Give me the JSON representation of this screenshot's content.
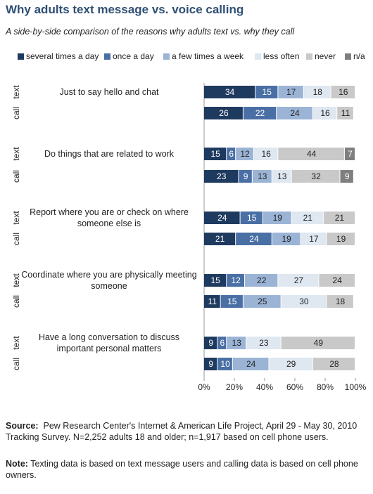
{
  "chart_data": {
    "type": "stacked-bar-horizontal",
    "title": "Why adults text message vs. voice calling",
    "subtitle": "A side-by-side comparison of the reasons why adults text vs. why they call",
    "categories": [
      "Just to say hello and chat",
      null,
      "Do things that are related to work",
      null,
      "Report where you are or check on where someone else is",
      null,
      "Coordinate where you are physically meeting someone",
      null,
      "Have a long conversation to discuss important personal matters",
      null
    ],
    "row_labels": [
      "text",
      "call",
      "text",
      "call",
      "text",
      "call",
      "text",
      "call",
      "text",
      "call"
    ],
    "series": [
      {
        "name": "several times a day",
        "color": "#1f3a5f",
        "values": [
          34,
          26,
          15,
          23,
          24,
          21,
          15,
          11,
          9,
          9
        ]
      },
      {
        "name": "once a day",
        "color": "#4a6fa5",
        "values": [
          15,
          22,
          6,
          9,
          15,
          24,
          12,
          15,
          6,
          10
        ]
      },
      {
        "name": "a few times a week",
        "color": "#9bb4d6",
        "values": [
          17,
          24,
          12,
          13,
          19,
          19,
          22,
          25,
          13,
          24
        ]
      },
      {
        "name": "less often",
        "color": "#dfe7f1",
        "values": [
          18,
          16,
          16,
          13,
          21,
          17,
          27,
          30,
          23,
          29
        ]
      },
      {
        "name": "never",
        "color": "#c9c9c9",
        "values": [
          16,
          11,
          44,
          32,
          21,
          19,
          24,
          18,
          49,
          28
        ]
      },
      {
        "name": "n/a",
        "color": "#7f7f7f",
        "values": [
          null,
          null,
          7,
          9,
          null,
          null,
          null,
          null,
          null,
          null
        ]
      }
    ],
    "xlim": [
      0,
      100
    ],
    "xticks": [
      {
        "value": 0,
        "label": "0%"
      },
      {
        "value": 20,
        "label": "20%"
      },
      {
        "value": 40,
        "label": "40%"
      },
      {
        "value": 60,
        "label": "60%"
      },
      {
        "value": 80,
        "label": "80%"
      },
      {
        "value": 100,
        "label": "100%"
      }
    ],
    "legend": "top",
    "source_label": "Source:",
    "source": "Pew Research Center's Internet & American Life Project, April 29 - May 30, 2010 Tracking Survey. N=2,252 adults 18 and older; n=1,917 based on cell phone users.",
    "note_label": "Note:",
    "note": "Texting data is based on text message users and calling data is based on cell phone owners."
  }
}
